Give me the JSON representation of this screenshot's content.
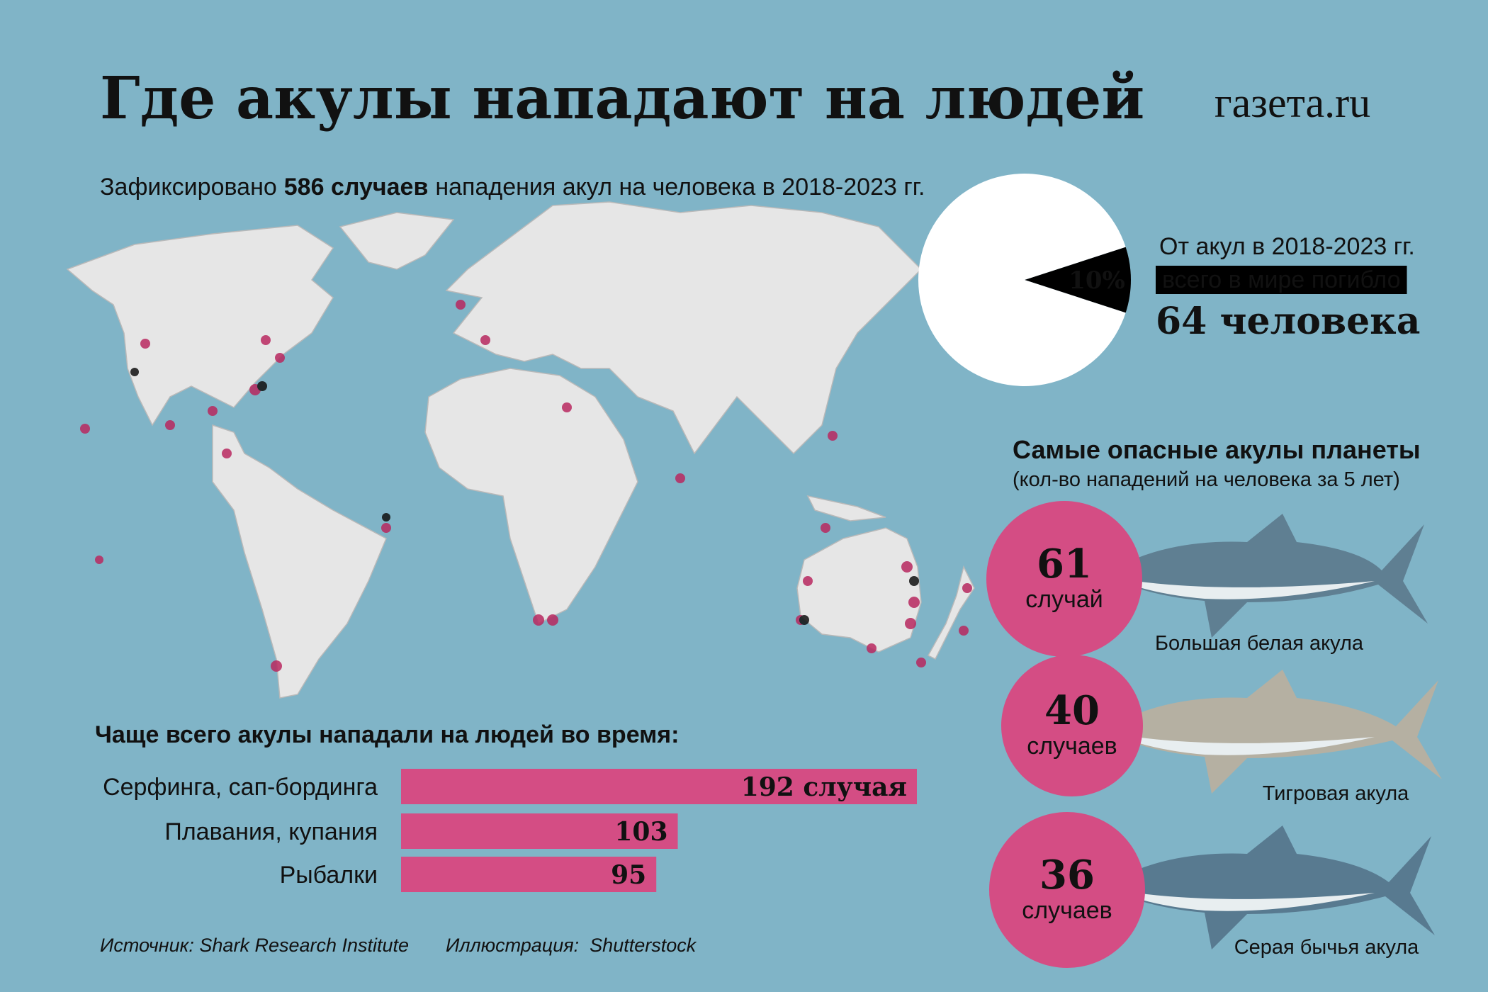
{
  "header": {
    "title": "Где акулы нападают на людей",
    "logo": "газета.ru"
  },
  "subtitle": {
    "before": "Зафиксировано",
    "bold": "586 случаев",
    "after": "нападения акул на человека в 2018-2023 гг."
  },
  "chart_data": [
    {
      "type": "pie",
      "values": [
        10,
        90
      ],
      "value_labels": [
        "10%",
        null
      ],
      "colors": [
        "#000000",
        "#ffffff"
      ],
      "text_top": "От акул в 2018-2023 гг.",
      "text_box": "всего в мире погибло",
      "text_bold": "64 человека"
    },
    {
      "type": "bar",
      "title": "Чаще всего акулы нападали на людей во время:",
      "categories": [
        "Серфинга, сап-бординга",
        "Плавания, купания",
        "Рыбалки"
      ],
      "values": [
        192,
        103,
        95
      ],
      "value_labels": [
        "192 случая",
        "103",
        "95"
      ],
      "color": "#d44d84",
      "xlim": [
        0,
        192
      ]
    }
  ],
  "sharks": {
    "title": "Самые опасные акулы планеты",
    "subtitle": "(кол-во нападений на человека за 5 лет)",
    "items": [
      {
        "value": 61,
        "unit": "случай",
        "name": "Большая белая акула"
      },
      {
        "value": 40,
        "unit": "случаев",
        "name": "Тигровая акула"
      },
      {
        "value": 36,
        "unit": "случаев",
        "name": "Серая бычья акула"
      }
    ]
  },
  "footer": {
    "source": "Источник: Shark Research Institute",
    "illustration": "Иллюстрация:  Shutterstock"
  }
}
